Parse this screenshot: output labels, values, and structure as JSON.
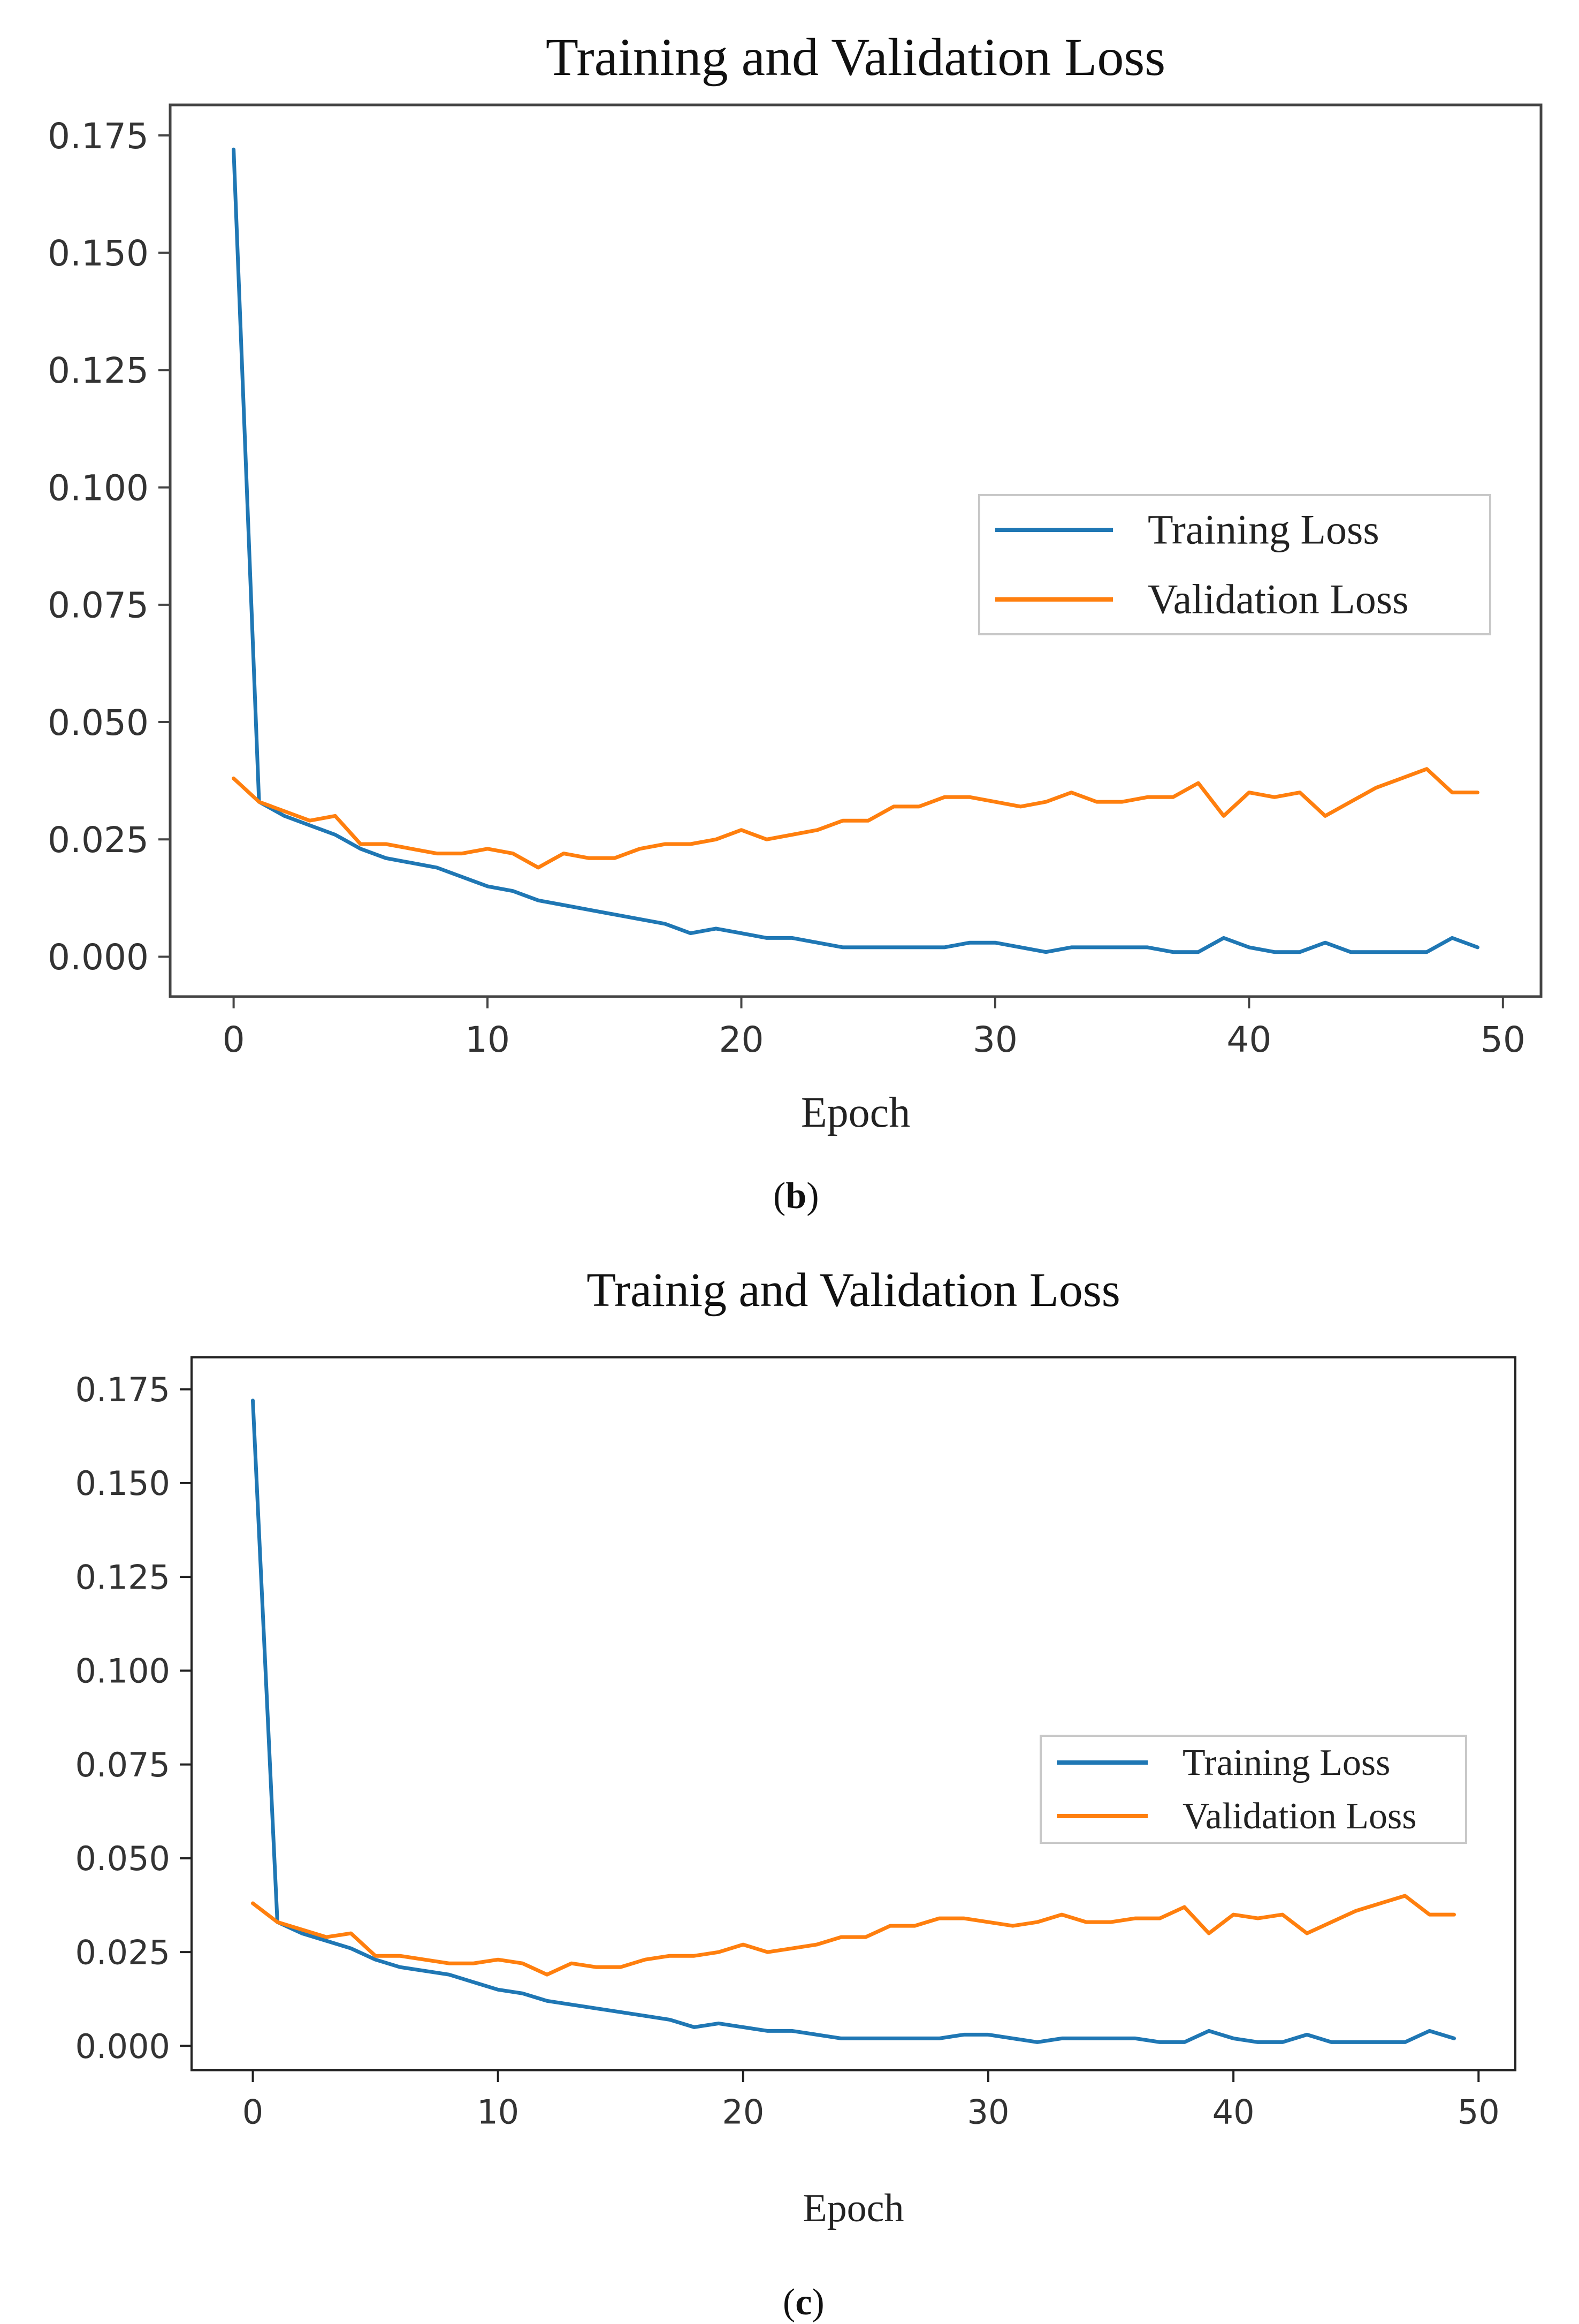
{
  "chart_data": [
    {
      "type": "line",
      "title": "Training and Validation Loss",
      "xlabel": "Epoch",
      "ylabel": "",
      "xlim": [
        -2.5,
        51.5
      ],
      "ylim": [
        -0.0085,
        0.1815
      ],
      "xticks": [
        "0",
        "10",
        "20",
        "30",
        "40",
        "50"
      ],
      "yticks": [
        "0.000",
        "0.025",
        "0.050",
        "0.075",
        "0.100",
        "0.125",
        "0.150",
        "0.175"
      ],
      "legend_position": "center-right",
      "caption_letter": "b",
      "caption_open": "(",
      "caption_close": ")",
      "series": [
        {
          "name": "Training Loss",
          "color": "#1f77b4",
          "x": [
            0,
            1,
            2,
            3,
            4,
            5,
            6,
            7,
            8,
            9,
            10,
            11,
            12,
            13,
            14,
            15,
            16,
            17,
            18,
            19,
            20,
            21,
            22,
            23,
            24,
            25,
            26,
            27,
            28,
            29,
            30,
            31,
            32,
            33,
            34,
            35,
            36,
            37,
            38,
            39,
            40,
            41,
            42,
            43,
            44,
            45,
            46,
            47,
            48,
            49
          ],
          "values": [
            0.172,
            0.033,
            0.03,
            0.028,
            0.026,
            0.023,
            0.021,
            0.02,
            0.019,
            0.017,
            0.015,
            0.014,
            0.012,
            0.011,
            0.01,
            0.009,
            0.008,
            0.007,
            0.005,
            0.006,
            0.005,
            0.004,
            0.004,
            0.003,
            0.002,
            0.002,
            0.002,
            0.002,
            0.002,
            0.003,
            0.003,
            0.002,
            0.001,
            0.002,
            0.002,
            0.002,
            0.002,
            0.001,
            0.001,
            0.004,
            0.002,
            0.001,
            0.001,
            0.003,
            0.001,
            0.001,
            0.001,
            0.001,
            0.004,
            0.002
          ]
        },
        {
          "name": "Validation Loss",
          "color": "#ff7f0e",
          "x": [
            0,
            1,
            2,
            3,
            4,
            5,
            6,
            7,
            8,
            9,
            10,
            11,
            12,
            13,
            14,
            15,
            16,
            17,
            18,
            19,
            20,
            21,
            22,
            23,
            24,
            25,
            26,
            27,
            28,
            29,
            30,
            31,
            32,
            33,
            34,
            35,
            36,
            37,
            38,
            39,
            40,
            41,
            42,
            43,
            44,
            45,
            46,
            47,
            48,
            49
          ],
          "values": [
            0.038,
            0.033,
            0.031,
            0.029,
            0.03,
            0.024,
            0.024,
            0.023,
            0.022,
            0.022,
            0.023,
            0.022,
            0.019,
            0.022,
            0.021,
            0.021,
            0.023,
            0.024,
            0.024,
            0.025,
            0.027,
            0.025,
            0.026,
            0.027,
            0.029,
            0.029,
            0.032,
            0.032,
            0.034,
            0.034,
            0.033,
            0.032,
            0.033,
            0.035,
            0.033,
            0.033,
            0.034,
            0.034,
            0.037,
            0.03,
            0.035,
            0.034,
            0.035,
            0.03,
            0.033,
            0.036,
            0.038,
            0.04,
            0.035,
            0.035
          ]
        }
      ]
    },
    {
      "type": "line",
      "title": "Trainig and Validation Loss",
      "xlabel": "Epoch",
      "ylabel": "",
      "xlim": [
        -2.5,
        51.5
      ],
      "ylim": [
        -0.0065,
        0.1835
      ],
      "xticks": [
        "0",
        "10",
        "20",
        "30",
        "40",
        "50"
      ],
      "yticks": [
        "0.000",
        "0.025",
        "0.050",
        "0.075",
        "0.100",
        "0.125",
        "0.150",
        "0.175"
      ],
      "legend_position": "center-right",
      "caption_letter": "c",
      "caption_open": "(",
      "caption_close": ")",
      "series": [
        {
          "name": "Training Loss",
          "color": "#1f77b4",
          "x": [
            0,
            1,
            2,
            3,
            4,
            5,
            6,
            7,
            8,
            9,
            10,
            11,
            12,
            13,
            14,
            15,
            16,
            17,
            18,
            19,
            20,
            21,
            22,
            23,
            24,
            25,
            26,
            27,
            28,
            29,
            30,
            31,
            32,
            33,
            34,
            35,
            36,
            37,
            38,
            39,
            40,
            41,
            42,
            43,
            44,
            45,
            46,
            47,
            48,
            49
          ],
          "values": [
            0.172,
            0.033,
            0.03,
            0.028,
            0.026,
            0.023,
            0.021,
            0.02,
            0.019,
            0.017,
            0.015,
            0.014,
            0.012,
            0.011,
            0.01,
            0.009,
            0.008,
            0.007,
            0.005,
            0.006,
            0.005,
            0.004,
            0.004,
            0.003,
            0.002,
            0.002,
            0.002,
            0.002,
            0.002,
            0.003,
            0.003,
            0.002,
            0.001,
            0.002,
            0.002,
            0.002,
            0.002,
            0.001,
            0.001,
            0.004,
            0.002,
            0.001,
            0.001,
            0.003,
            0.001,
            0.001,
            0.001,
            0.001,
            0.004,
            0.002
          ]
        },
        {
          "name": "Validation Loss",
          "color": "#ff7f0e",
          "x": [
            0,
            1,
            2,
            3,
            4,
            5,
            6,
            7,
            8,
            9,
            10,
            11,
            12,
            13,
            14,
            15,
            16,
            17,
            18,
            19,
            20,
            21,
            22,
            23,
            24,
            25,
            26,
            27,
            28,
            29,
            30,
            31,
            32,
            33,
            34,
            35,
            36,
            37,
            38,
            39,
            40,
            41,
            42,
            43,
            44,
            45,
            46,
            47,
            48,
            49
          ],
          "values": [
            0.038,
            0.033,
            0.031,
            0.029,
            0.03,
            0.024,
            0.024,
            0.023,
            0.022,
            0.022,
            0.023,
            0.022,
            0.019,
            0.022,
            0.021,
            0.021,
            0.023,
            0.024,
            0.024,
            0.025,
            0.027,
            0.025,
            0.026,
            0.027,
            0.029,
            0.029,
            0.032,
            0.032,
            0.034,
            0.034,
            0.033,
            0.032,
            0.033,
            0.035,
            0.033,
            0.033,
            0.034,
            0.034,
            0.037,
            0.03,
            0.035,
            0.034,
            0.035,
            0.03,
            0.033,
            0.036,
            0.038,
            0.04,
            0.035,
            0.035
          ]
        }
      ]
    }
  ]
}
